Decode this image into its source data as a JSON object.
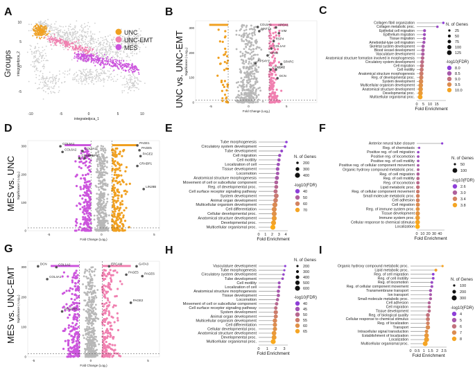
{
  "palette": {
    "unc": "#f0a020",
    "unc_emt": "#f080b0",
    "mes": "#cc55dd",
    "gray": "#b8b8b8",
    "fdr_low": "#8e3fd8",
    "fdr_high": "#f5a524",
    "seg": "#9a9a9a"
  },
  "rows": [
    {
      "label": "UNC vs. UNC-EMT"
    },
    {
      "label": "MES vs. UNC"
    },
    {
      "label": "MES vs. UNC-EMT"
    }
  ],
  "umap": {
    "letter": "A",
    "ylabel": "Groups",
    "xlabel": "integratedpca_1",
    "yaxis": "integratedpca_2",
    "xticks": [
      "-10",
      "-5",
      "0",
      "5",
      "10"
    ],
    "yticks": [
      "10",
      "5",
      "0",
      "-5"
    ],
    "legend": [
      "UNC",
      "UNC-EMT",
      "MES"
    ]
  },
  "volcano_axes": {
    "xlabel": "Fold Change (Log₂)",
    "ylabel": "Significance (-Log₁₀)"
  },
  "chart_data": [
    {
      "type": "scatter",
      "id": "B",
      "title": "UNC vs. UNC-EMT",
      "xticks": [
        "-5",
        "0",
        "5"
      ],
      "xlim": [
        -7,
        9
      ],
      "yticks": [
        "0",
        "100",
        "200",
        "300"
      ],
      "ylim": [
        0,
        330
      ],
      "thr": 2.7,
      "genes": [
        {
          "name": "COL5A1",
          "x": 1.2,
          "y": 305
        },
        {
          "name": "APOA1",
          "x": 3.6,
          "y": 303
        },
        {
          "name": "NNT1a",
          "x": 1.4,
          "y": 288
        },
        {
          "name": "VIM",
          "x": 4.0,
          "y": 280
        },
        {
          "name": "RSP4",
          "x": 3.3,
          "y": 248
        },
        {
          "name": "COL1A2",
          "x": 3.0,
          "y": 218
        },
        {
          "name": "APOE",
          "x": 2.5,
          "y": 190
        },
        {
          "name": "SPARC",
          "x": 4.3,
          "y": 155
        },
        {
          "name": "COL1A1",
          "x": 2.9,
          "y": 133
        },
        {
          "name": "IGF2",
          "x": 3.6,
          "y": 133
        },
        {
          "name": "DCN",
          "x": 3.8,
          "y": 98
        },
        {
          "name": "RPS4Y1",
          "x": 0.9,
          "y": 158
        }
      ]
    },
    {
      "type": "scatter",
      "id": "D",
      "title": "MES vs. UNC",
      "xticks": [
        "-5",
        "0",
        "5"
      ],
      "xlim": [
        -7,
        5.5
      ],
      "yticks": [
        "0",
        "100",
        "200",
        "300"
      ],
      "ylim": [
        0,
        320
      ],
      "thr": 1.0,
      "genes": [
        {
          "name": "COL5A1",
          "x": -3.9,
          "y": 300
        },
        {
          "name": "COL6A2",
          "x": -3.7,
          "y": 280
        },
        {
          "name": "COL4A5",
          "x": -2.1,
          "y": 258
        },
        {
          "name": "COL6A1",
          "x": -1.8,
          "y": 283
        },
        {
          "name": "IGFBP5",
          "x": -1.6,
          "y": 258
        },
        {
          "name": "PAGE1",
          "x": 3.4,
          "y": 303
        },
        {
          "name": "PAGE2",
          "x": 3.7,
          "y": 265
        },
        {
          "name": "PAGE5",
          "x": 3.6,
          "y": 286
        },
        {
          "name": "CRABP1",
          "x": 3.4,
          "y": 230
        },
        {
          "name": "LIN28B",
          "x": 4.0,
          "y": 148
        }
      ]
    },
    {
      "type": "scatter",
      "id": "G",
      "title": "MES vs. UNC-EMT",
      "xticks": [
        "-5",
        "0",
        "5"
      ],
      "xlim": [
        -5.5,
        6
      ],
      "yticks": [
        "0",
        "100",
        "200",
        "300"
      ],
      "ylim": [
        0,
        320
      ],
      "thr": 1.0,
      "genes": [
        {
          "name": "DCN",
          "x": -4.6,
          "y": 303
        },
        {
          "name": "COL1A2",
          "x": -3.0,
          "y": 300
        },
        {
          "name": "COL4A1",
          "x": -3.8,
          "y": 260
        },
        {
          "name": "EPCAM",
          "x": 1.6,
          "y": 303
        },
        {
          "name": "GATA3",
          "x": 4.0,
          "y": 303
        },
        {
          "name": "PAGE5",
          "x": 3.1,
          "y": 275
        },
        {
          "name": "PAGE6",
          "x": 4.5,
          "y": 270
        },
        {
          "name": "PAGE2",
          "x": 3.5,
          "y": 181
        },
        {
          "name": "PDGFRB",
          "x": -2.5,
          "y": 152
        }
      ]
    },
    {
      "type": "bar",
      "id": "C",
      "title": "UNC vs. UNC-EMT",
      "xlabel": "Fold Enrichment",
      "xlim": [
        0,
        22
      ],
      "xticks": [
        0,
        5,
        10,
        15
      ],
      "size_title": "N. of Genes",
      "size_levels": [
        25,
        50,
        75,
        100,
        125
      ],
      "color_title": "-log10(FDR)",
      "color_levels": [
        8.0,
        8.5,
        9.0,
        9.5,
        10.0
      ],
      "terms": [
        {
          "label": "Collagen fibril organization",
          "fe": 20.1,
          "n": 30,
          "c": 8.0
        },
        {
          "label": "Collagen metabolic proc.",
          "fe": 15.6,
          "n": 35,
          "c": 8.2
        },
        {
          "label": "Epithelial cell migration",
          "fe": 5.9,
          "n": 55,
          "c": 8.3
        },
        {
          "label": "Epithelium migration",
          "fe": 5.8,
          "n": 56,
          "c": 8.3
        },
        {
          "label": "Tissue migration",
          "fe": 5.7,
          "n": 57,
          "c": 8.4
        },
        {
          "label": "Ameboidal-type cell migration",
          "fe": 5.4,
          "n": 60,
          "c": 8.4
        },
        {
          "label": "Skeletal system development",
          "fe": 4.8,
          "n": 70,
          "c": 8.5
        },
        {
          "label": "Blood vessel development",
          "fe": 4.7,
          "n": 75,
          "c": 8.6
        },
        {
          "label": "Vasculature development",
          "fe": 4.6,
          "n": 78,
          "c": 8.6
        },
        {
          "label": "Anatomical structure formation involved in morphogenesis",
          "fe": 4.4,
          "n": 80,
          "c": 8.8
        },
        {
          "label": "Circulatory system development",
          "fe": 4.1,
          "n": 90,
          "c": 8.9
        },
        {
          "label": "Cell migration",
          "fe": 3.9,
          "n": 95,
          "c": 9.0
        },
        {
          "label": "Cell motility",
          "fe": 3.7,
          "n": 97,
          "c": 9.1
        },
        {
          "label": "Anatomical structure morphogenesis",
          "fe": 3.5,
          "n": 105,
          "c": 9.2
        },
        {
          "label": "Reg. of developmental proc.",
          "fe": 3.4,
          "n": 108,
          "c": 9.3
        },
        {
          "label": "System development",
          "fe": 3.2,
          "n": 118,
          "c": 9.5
        },
        {
          "label": "Multicellular organism development",
          "fe": 3.0,
          "n": 120,
          "c": 9.6
        },
        {
          "label": "Anatomical structure development",
          "fe": 2.9,
          "n": 123,
          "c": 9.7
        },
        {
          "label": "Developmental proc.",
          "fe": 2.8,
          "n": 125,
          "c": 9.8
        },
        {
          "label": "Multicellular organismal proc.",
          "fe": 2.6,
          "n": 125,
          "c": 10.0
        }
      ]
    },
    {
      "type": "bar",
      "id": "E",
      "title": "MES vs. UNC",
      "xlabel": "Fold Enrichment",
      "xlim": [
        0,
        4.3
      ],
      "xticks": [
        0,
        1,
        2,
        3,
        4
      ],
      "size_title": "N. of Genes",
      "size_levels": [
        200,
        300,
        400
      ],
      "color_title": "-log10(FDR)",
      "color_levels": [
        40,
        50,
        60,
        70
      ],
      "terms": [
        {
          "label": "Tube morphogenesis",
          "fe": 4.1,
          "n": 180,
          "c": 40
        },
        {
          "label": "Circulatory system development",
          "fe": 3.9,
          "n": 200,
          "c": 41
        },
        {
          "label": "Tube development",
          "fe": 3.4,
          "n": 230,
          "c": 42
        },
        {
          "label": "Cell migration",
          "fe": 3.1,
          "n": 250,
          "c": 44
        },
        {
          "label": "Cell motility",
          "fe": 3.0,
          "n": 260,
          "c": 45
        },
        {
          "label": "Localization of cell",
          "fe": 2.9,
          "n": 265,
          "c": 45
        },
        {
          "label": "Tissue development",
          "fe": 2.8,
          "n": 290,
          "c": 46
        },
        {
          "label": "Locomotion",
          "fe": 2.8,
          "n": 275,
          "c": 47
        },
        {
          "label": "Anatomical structure morphogenesis",
          "fe": 2.7,
          "n": 320,
          "c": 48
        },
        {
          "label": "Movement of cell or subcellular component",
          "fe": 2.6,
          "n": 310,
          "c": 50
        },
        {
          "label": "Reg. of developmental proc.",
          "fe": 2.6,
          "n": 315,
          "c": 52
        },
        {
          "label": "Cell surface receptor signaling pathway",
          "fe": 2.5,
          "n": 330,
          "c": 54
        },
        {
          "label": "System development",
          "fe": 2.6,
          "n": 380,
          "c": 57
        },
        {
          "label": "Animal organ development",
          "fe": 2.5,
          "n": 370,
          "c": 59
        },
        {
          "label": "Multicellular organism development",
          "fe": 2.4,
          "n": 400,
          "c": 62
        },
        {
          "label": "Cell differentiation",
          "fe": 2.3,
          "n": 390,
          "c": 63
        },
        {
          "label": "Cellular developmental proc.",
          "fe": 2.3,
          "n": 392,
          "c": 64
        },
        {
          "label": "Anatomical structure development",
          "fe": 2.3,
          "n": 410,
          "c": 67
        },
        {
          "label": "Developmental proc.",
          "fe": 2.2,
          "n": 420,
          "c": 69
        },
        {
          "label": "Multicellular organismal proc.",
          "fe": 2.1,
          "n": 430,
          "c": 72
        }
      ]
    },
    {
      "type": "bar",
      "id": "F",
      "title": "MES vs. UNC",
      "xlabel": "Fold Enrichment",
      "xlim": [
        0,
        48
      ],
      "xticks": [
        0,
        10,
        20,
        30,
        40
      ],
      "size_title": "N. of Genes",
      "size_levels": [
        50,
        100
      ],
      "color_title": "-log10(FDR)",
      "color_levels": [
        2.6,
        3.0,
        3.4,
        3.8
      ],
      "terms": [
        {
          "label": "Anterior neural tube closure",
          "fe": 44.0,
          "n": 8,
          "c": 2.6
        },
        {
          "label": "Reg. of chemotaxis",
          "fe": 4.2,
          "n": 25,
          "c": 2.7
        },
        {
          "label": "Positive reg. of cell migration",
          "fe": 2.6,
          "n": 55,
          "c": 2.7
        },
        {
          "label": "Positive reg. of locomotion",
          "fe": 2.5,
          "n": 57,
          "c": 2.8
        },
        {
          "label": "Positive reg. of cell motility",
          "fe": 2.5,
          "n": 56,
          "c": 2.8
        },
        {
          "label": "Positive reg. of cellular component movement",
          "fe": 2.4,
          "n": 58,
          "c": 2.9
        },
        {
          "label": "Organic hydroxy compound metabolic proc.",
          "fe": 2.4,
          "n": 60,
          "c": 3.0
        },
        {
          "label": "Reg. of cell migration",
          "fe": 2.2,
          "n": 70,
          "c": 3.0
        },
        {
          "label": "Reg. of cell motility",
          "fe": 2.1,
          "n": 72,
          "c": 3.1
        },
        {
          "label": "Reg. of locomotion",
          "fe": 2.0,
          "n": 73,
          "c": 3.1
        },
        {
          "label": "Lipid metabolic proc.",
          "fe": 2.0,
          "n": 80,
          "c": 3.2
        },
        {
          "label": "Reg. of cellular component movement",
          "fe": 1.9,
          "n": 78,
          "c": 3.3
        },
        {
          "label": "Small molecule metabolic proc.",
          "fe": 1.9,
          "n": 82,
          "c": 3.4
        },
        {
          "label": "Cell adhesion",
          "fe": 1.8,
          "n": 85,
          "c": 3.4
        },
        {
          "label": "Cell migration",
          "fe": 1.8,
          "n": 88,
          "c": 3.5
        },
        {
          "label": "Reg. of immune system proc.",
          "fe": 1.7,
          "n": 86,
          "c": 3.6
        },
        {
          "label": "Tissue development",
          "fe": 1.6,
          "n": 95,
          "c": 3.6
        },
        {
          "label": "Immune system proc.",
          "fe": 1.5,
          "n": 98,
          "c": 3.7
        },
        {
          "label": "Cellular response to chemical stimulus",
          "fe": 1.4,
          "n": 102,
          "c": 3.8
        },
        {
          "label": "Localization",
          "fe": 1.3,
          "n": 110,
          "c": 3.9
        }
      ]
    },
    {
      "type": "bar",
      "id": "H",
      "title": "MES vs. UNC-EMT",
      "xlabel": "Fold Enrichment",
      "xlim": [
        0,
        3.4
      ],
      "xticks": [
        0,
        1,
        2,
        3
      ],
      "size_title": "N. of Genes",
      "size_levels": [
        200,
        300,
        400,
        500,
        600
      ],
      "color_title": "-log10(FDR)",
      "color_levels": [
        40,
        45,
        50,
        55,
        60,
        65
      ],
      "terms": [
        {
          "label": "Vasculature development",
          "fe": 3.1,
          "n": 180,
          "c": 40
        },
        {
          "label": "Tube morphogenesis",
          "fe": 3.0,
          "n": 200,
          "c": 41
        },
        {
          "label": "Circulatory system development",
          "fe": 2.9,
          "n": 230,
          "c": 42
        },
        {
          "label": "Tube development",
          "fe": 2.8,
          "n": 250,
          "c": 43
        },
        {
          "label": "Cell motility",
          "fe": 2.4,
          "n": 300,
          "c": 44
        },
        {
          "label": "Localization of cell",
          "fe": 2.4,
          "n": 305,
          "c": 45
        },
        {
          "label": "Anatomical structure morphogenesis",
          "fe": 2.3,
          "n": 350,
          "c": 46
        },
        {
          "label": "Tissue development",
          "fe": 2.3,
          "n": 360,
          "c": 47
        },
        {
          "label": "Locomotion",
          "fe": 2.2,
          "n": 340,
          "c": 48
        },
        {
          "label": "Movement of cell or subcellular component",
          "fe": 2.1,
          "n": 370,
          "c": 50
        },
        {
          "label": "Cell surface receptor signaling pathway",
          "fe": 2.0,
          "n": 380,
          "c": 52
        },
        {
          "label": "System development",
          "fe": 2.0,
          "n": 500,
          "c": 55
        },
        {
          "label": "Animal organ development",
          "fe": 2.0,
          "n": 470,
          "c": 56
        },
        {
          "label": "Multicellular organism development",
          "fe": 1.9,
          "n": 520,
          "c": 58
        },
        {
          "label": "Cell differentiation",
          "fe": 1.9,
          "n": 500,
          "c": 59
        },
        {
          "label": "Cellular developmental proc.",
          "fe": 1.9,
          "n": 505,
          "c": 60
        },
        {
          "label": "Anatomical structure development",
          "fe": 1.8,
          "n": 560,
          "c": 62
        },
        {
          "label": "Developmental proc.",
          "fe": 1.8,
          "n": 580,
          "c": 63
        },
        {
          "label": "Multicellular organismal proc.",
          "fe": 1.7,
          "n": 600,
          "c": 66
        }
      ]
    },
    {
      "type": "bar",
      "id": "I",
      "title": "MES vs. UNC-EMT",
      "xlabel": "Fold Enrichment",
      "xlim": [
        0,
        2.7
      ],
      "xticks": [
        0.0,
        0.5,
        1.0,
        1.5,
        2.0,
        2.5
      ],
      "size_title": "N. of Genes",
      "size_levels": [
        100,
        200,
        300
      ],
      "color_title": "-log10(FDR)",
      "color_levels": [
        4,
        5,
        6,
        7,
        8
      ],
      "terms": [
        {
          "label": "Organic hydroxy compound metabolic proc.",
          "fe": 2.4,
          "n": 80,
          "c": 8.0
        },
        {
          "label": "Lipid metabolic proc.",
          "fe": 1.9,
          "n": 150,
          "c": 7.8
        },
        {
          "label": "Reg. of cell migration",
          "fe": 1.7,
          "n": 130,
          "c": 4.0
        },
        {
          "label": "Reg. of cell motility",
          "fe": 1.7,
          "n": 132,
          "c": 4.2
        },
        {
          "label": "Reg. of locomotion",
          "fe": 1.6,
          "n": 135,
          "c": 4.4
        },
        {
          "label": "Reg. of cellular component movement",
          "fe": 1.6,
          "n": 140,
          "c": 4.6
        },
        {
          "label": "Transmembrane transport",
          "fe": 1.5,
          "n": 160,
          "c": 4.8
        },
        {
          "label": "Ion transport",
          "fe": 1.5,
          "n": 150,
          "c": 5.0
        },
        {
          "label": "Small molecule metabolic proc.",
          "fe": 1.5,
          "n": 155,
          "c": 5.2
        },
        {
          "label": "Cell adhesion",
          "fe": 1.4,
          "n": 165,
          "c": 5.4
        },
        {
          "label": "Cell migration",
          "fe": 1.4,
          "n": 170,
          "c": 5.6
        },
        {
          "label": "Tissue development",
          "fe": 1.4,
          "n": 175,
          "c": 5.8
        },
        {
          "label": "Reg. of biological quality",
          "fe": 1.3,
          "n": 220,
          "c": 6.0
        },
        {
          "label": "Cellular response to chemical stimulus",
          "fe": 1.3,
          "n": 230,
          "c": 6.3
        },
        {
          "label": "Reg. of localization",
          "fe": 1.3,
          "n": 210,
          "c": 6.6
        },
        {
          "label": "Transport",
          "fe": 1.3,
          "n": 260,
          "c": 7.0
        },
        {
          "label": "Intracellular signal transduction",
          "fe": 1.2,
          "n": 200,
          "c": 7.2
        },
        {
          "label": "Establishment of localization",
          "fe": 1.2,
          "n": 270,
          "c": 7.5
        },
        {
          "label": "Localization",
          "fe": 1.2,
          "n": 300,
          "c": 7.8
        },
        {
          "label": "Multicellular organismal proc.",
          "fe": 1.1,
          "n": 290,
          "c": 8.0
        }
      ]
    }
  ]
}
